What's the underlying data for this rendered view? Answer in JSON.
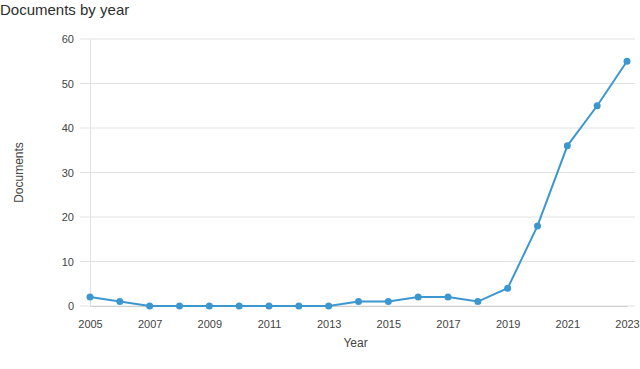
{
  "chart_data": {
    "type": "line",
    "title": "Documents by year",
    "x_label": "Year",
    "y_label": "Documents",
    "x": [
      2005,
      2006,
      2007,
      2008,
      2009,
      2010,
      2011,
      2012,
      2013,
      2014,
      2015,
      2016,
      2017,
      2018,
      2019,
      2020,
      2021,
      2022,
      2023
    ],
    "values": [
      2,
      1,
      0,
      0,
      0,
      0,
      0,
      0,
      0,
      1,
      1,
      2,
      2,
      1,
      4,
      18,
      36,
      45,
      55
    ],
    "color": "#3d97cf",
    "marker": "circle",
    "grid": true,
    "xlim": [
      2005,
      2023
    ],
    "xticks": [
      2005,
      2007,
      2009,
      2011,
      2013,
      2015,
      2017,
      2019,
      2021,
      2023
    ],
    "ylim": [
      0,
      60
    ],
    "yticks": [
      0,
      10,
      20,
      30,
      40,
      50,
      60
    ]
  }
}
